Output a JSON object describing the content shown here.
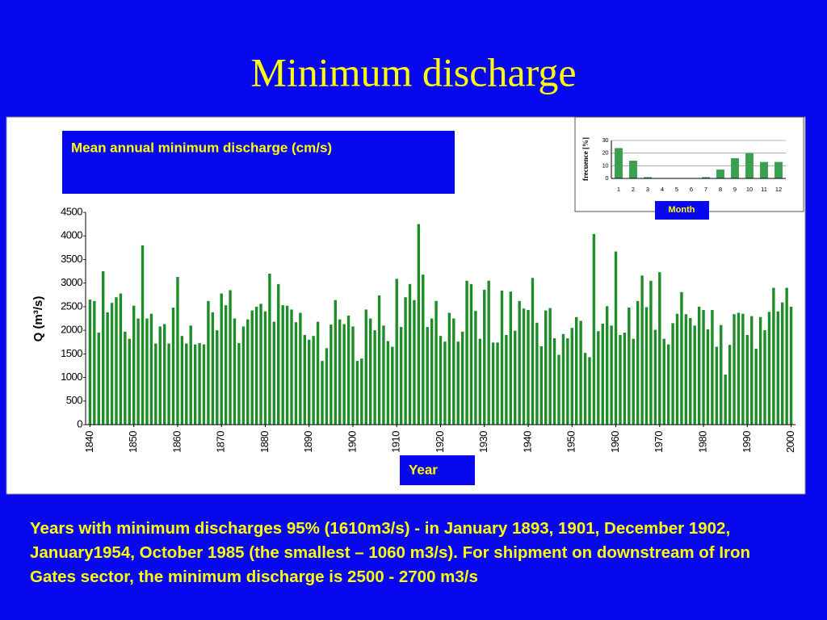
{
  "slide": {
    "title": "Minimum discharge",
    "note": "Years with minimum discharges 95% (1610m3/s) - in January 1893, 1901, December 1902, January1954, October 1985 (the smallest – 1060 m3/s). For shipment on downstream of Iron Gates sector, the minimum discharge  is 2500 - 2700 m3/s"
  },
  "chart_data": [
    {
      "type": "bar",
      "title": "Mean annual minimum discharge (cm/s)",
      "x_label": "Year",
      "y_label": "Q (m³/s)",
      "color": "#1e8c28",
      "grid": false,
      "xlim": [
        1839,
        2001
      ],
      "xticks": [
        1840,
        1850,
        1860,
        1870,
        1880,
        1890,
        1900,
        1910,
        1920,
        1930,
        1940,
        1950,
        1960,
        1970,
        1980,
        1990,
        2000
      ],
      "ylim": [
        0,
        4500
      ],
      "yticks": [
        0,
        500,
        1000,
        1500,
        2000,
        2500,
        3000,
        3500,
        4000,
        4500
      ],
      "x": [
        1840,
        1841,
        1842,
        1843,
        1844,
        1845,
        1846,
        1847,
        1848,
        1849,
        1850,
        1851,
        1852,
        1853,
        1854,
        1855,
        1856,
        1857,
        1858,
        1859,
        1860,
        1861,
        1862,
        1863,
        1864,
        1865,
        1866,
        1867,
        1868,
        1869,
        1870,
        1871,
        1872,
        1873,
        1874,
        1875,
        1876,
        1877,
        1878,
        1879,
        1880,
        1881,
        1882,
        1883,
        1884,
        1885,
        1886,
        1887,
        1888,
        1889,
        1890,
        1891,
        1892,
        1893,
        1894,
        1895,
        1896,
        1897,
        1898,
        1899,
        1900,
        1901,
        1902,
        1903,
        1904,
        1905,
        1906,
        1907,
        1908,
        1909,
        1910,
        1911,
        1912,
        1913,
        1914,
        1915,
        1916,
        1917,
        1918,
        1919,
        1920,
        1921,
        1922,
        1923,
        1924,
        1925,
        1926,
        1927,
        1928,
        1929,
        1930,
        1931,
        1932,
        1933,
        1934,
        1935,
        1936,
        1937,
        1938,
        1939,
        1940,
        1941,
        1942,
        1943,
        1944,
        1945,
        1946,
        1947,
        1948,
        1949,
        1950,
        1951,
        1952,
        1953,
        1954,
        1955,
        1956,
        1957,
        1958,
        1959,
        1960,
        1961,
        1962,
        1963,
        1964,
        1965,
        1966,
        1967,
        1968,
        1969,
        1970,
        1971,
        1972,
        1973,
        1974,
        1975,
        1976,
        1977,
        1978,
        1979,
        1980,
        1981,
        1982,
        1983,
        1984,
        1985,
        1986,
        1987,
        1988,
        1989,
        1990,
        1991,
        1992,
        1993,
        1994,
        1995,
        1996,
        1997,
        1998,
        1999,
        2000
      ],
      "values": [
        2650,
        2620,
        1950,
        3250,
        2380,
        2580,
        2700,
        2780,
        1970,
        1820,
        2520,
        2250,
        3800,
        2250,
        2350,
        1720,
        2080,
        2130,
        1720,
        2480,
        3130,
        1880,
        1720,
        2100,
        1700,
        1730,
        1700,
        2620,
        2380,
        2000,
        2780,
        2530,
        2850,
        2250,
        1730,
        2080,
        2230,
        2420,
        2500,
        2560,
        2400,
        3200,
        2180,
        2980,
        2530,
        2520,
        2440,
        2170,
        2370,
        1900,
        1800,
        1880,
        2180,
        1350,
        1620,
        2120,
        2640,
        2230,
        2130,
        2310,
        2080,
        1350,
        1400,
        2440,
        2250,
        2000,
        2740,
        2100,
        1770,
        1650,
        3090,
        2070,
        2700,
        2980,
        2640,
        4250,
        3180,
        2070,
        2250,
        2620,
        1880,
        1760,
        2370,
        2250,
        1760,
        1970,
        3050,
        2980,
        2410,
        1820,
        2860,
        3050,
        1740,
        1740,
        2840,
        1900,
        2820,
        1990,
        2620,
        2460,
        2430,
        3110,
        2160,
        1660,
        2420,
        2470,
        1830,
        1480,
        1920,
        1830,
        2050,
        2280,
        2200,
        1520,
        1430,
        4040,
        1980,
        2140,
        2510,
        2100,
        3670,
        1900,
        1950,
        2480,
        1820,
        2620,
        3160,
        2490,
        3050,
        2010,
        3230,
        1820,
        1700,
        2150,
        2350,
        2810,
        2340,
        2260,
        2100,
        2500,
        2430,
        2020,
        2430,
        1650,
        2110,
        1060,
        1690,
        2340,
        2370,
        2350,
        1900,
        2300,
        1610,
        2280,
        2000,
        2390,
        2900,
        2400,
        2590,
        2900,
        2500
      ]
    },
    {
      "type": "bar",
      "x_label": "Month",
      "y_label": "frecuence [%]",
      "color": "#3aa050",
      "grid": true,
      "categories": [
        "1",
        "2",
        "3",
        "4",
        "5",
        "6",
        "7",
        "8",
        "9",
        "10",
        "11",
        "12"
      ],
      "values": [
        24,
        14,
        1,
        0,
        0,
        0,
        1,
        7,
        16,
        20,
        13,
        13
      ],
      "ylim": [
        0,
        30
      ],
      "yticks": [
        0,
        10,
        20,
        30
      ]
    }
  ]
}
